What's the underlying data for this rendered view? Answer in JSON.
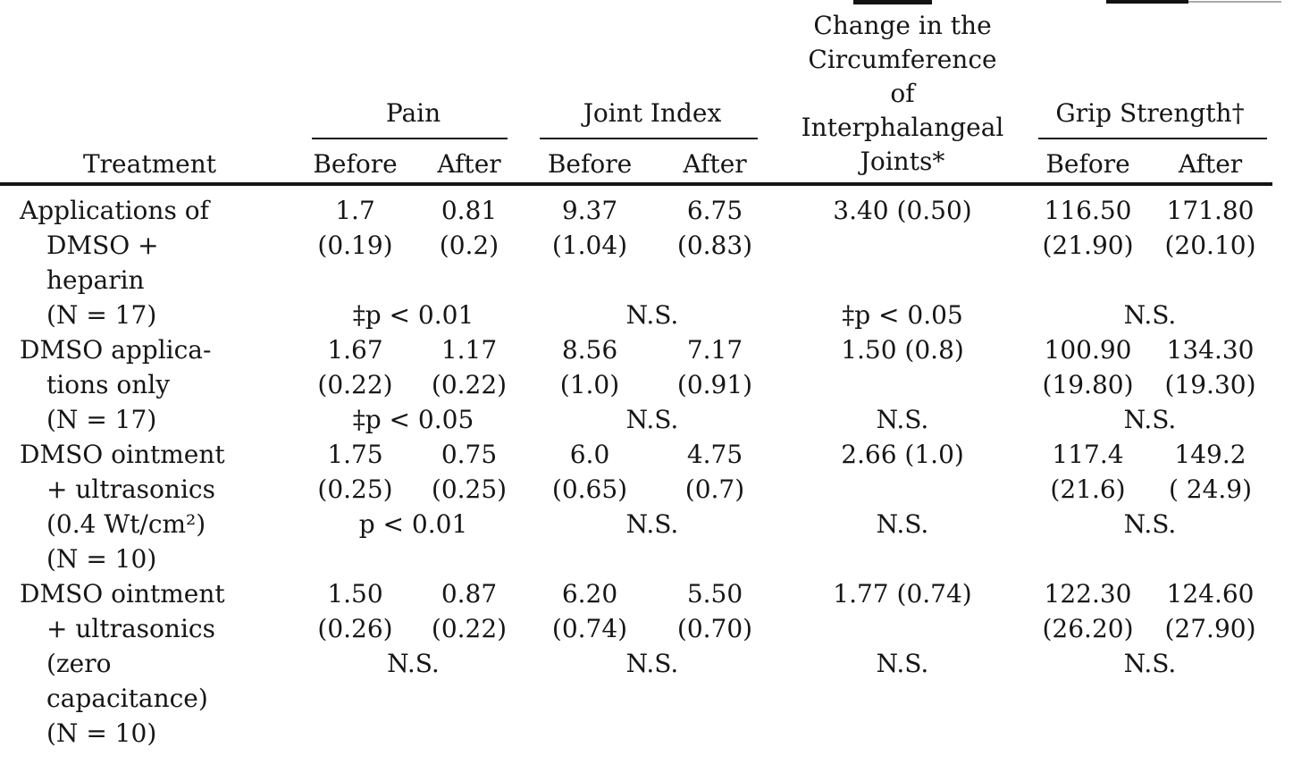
{
  "colors": {
    "ink": "#161616",
    "background": "#ffffff",
    "rule": "#151515"
  },
  "table": {
    "header": {
      "treatment": "Treatment",
      "pain": "Pain",
      "joint_index": "Joint Index",
      "circumference_lines": [
        "Change in the",
        "Circumference",
        "of",
        "Interphalangeal",
        "Joints*"
      ],
      "grip_strength": "Grip Strength†",
      "before": "Before",
      "after": "After"
    },
    "rows": [
      {
        "treatment": [
          "Applications of",
          "DMSO +",
          "heparin",
          "(N = 17)"
        ],
        "pain": {
          "before": "1.7",
          "after": "0.81",
          "before_se": "(0.19)",
          "after_se": "(0.2)",
          "sig": "‡p < 0.01"
        },
        "joint_index": {
          "before": "9.37",
          "after": "6.75",
          "before_se": "(1.04)",
          "after_se": "(0.83)",
          "sig": "N.S."
        },
        "circumference": {
          "mean_se": "3.40 (0.50)",
          "sig": "‡p < 0.05"
        },
        "grip_strength": {
          "before": "116.50",
          "after": "171.80",
          "before_se": "(21.90)",
          "after_se": "(20.10)",
          "sig": "N.S."
        }
      },
      {
        "treatment": [
          "DMSO applica-",
          "tions only",
          "(N = 17)"
        ],
        "pain": {
          "before": "1.67",
          "after": "1.17",
          "before_se": "(0.22)",
          "after_se": "(0.22)",
          "sig": "‡p < 0.05"
        },
        "joint_index": {
          "before": "8.56",
          "after": "7.17",
          "before_se": "(1.0)",
          "after_se": "(0.91)",
          "sig": "N.S."
        },
        "circumference": {
          "mean_se": "1.50 (0.8)",
          "sig": "N.S."
        },
        "grip_strength": {
          "before": "100.90",
          "after": "134.30",
          "before_se": "(19.80)",
          "after_se": "(19.30)",
          "sig": "N.S."
        }
      },
      {
        "treatment": [
          "DMSO ointment",
          "+ ultrasonics",
          "(0.4 Wt/cm²)",
          "(N = 10)"
        ],
        "pain": {
          "before": "1.75",
          "after": "0.75",
          "before_se": "(0.25)",
          "after_se": "(0.25)",
          "sig": "p < 0.01"
        },
        "joint_index": {
          "before": "6.0",
          "after": "4.75",
          "before_se": "(0.65)",
          "after_se": "(0.7)",
          "sig": "N.S."
        },
        "circumference": {
          "mean_se": "2.66 (1.0)",
          "sig": "N.S."
        },
        "grip_strength": {
          "before": "117.4",
          "after": "149.2",
          "before_se": "(21.6)",
          "after_se": "( 24.9)",
          "sig": "N.S."
        }
      },
      {
        "treatment": [
          "DMSO ointment",
          "+ ultrasonics",
          "(zero",
          "capacitance)",
          "(N = 10)"
        ],
        "pain": {
          "before": "1.50",
          "after": "0.87",
          "before_se": "(0.26)",
          "after_se": "(0.22)",
          "sig": "N.S."
        },
        "joint_index": {
          "before": "6.20",
          "after": "5.50",
          "before_se": "(0.74)",
          "after_se": "(0.70)",
          "sig": "N.S."
        },
        "circumference": {
          "mean_se": "1.77 (0.74)",
          "sig": "N.S."
        },
        "grip_strength": {
          "before": "122.30",
          "after": "124.60",
          "before_se": "(26.20)",
          "after_se": "(27.90)",
          "sig": "N.S."
        }
      }
    ]
  }
}
